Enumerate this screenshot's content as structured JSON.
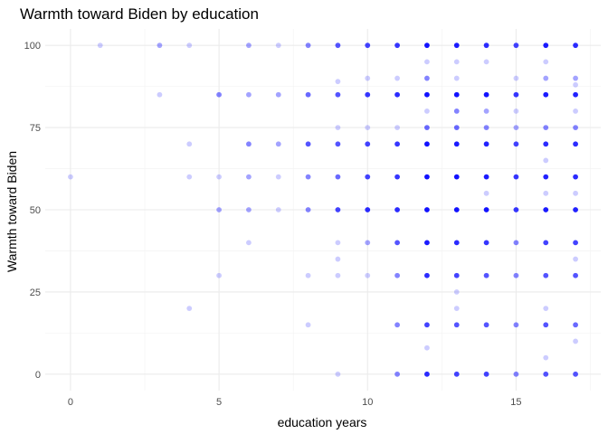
{
  "chart_data": {
    "type": "scatter",
    "title": "Warmth toward Biden by education",
    "xlabel": "education years",
    "ylabel": "Warmth toward Biden",
    "xlim": [
      -0.85,
      17.85
    ],
    "ylim": [
      -5,
      105
    ],
    "x_ticks": [
      0,
      5,
      10,
      15
    ],
    "y_ticks": [
      0,
      25,
      50,
      75,
      100
    ],
    "grid": true,
    "point_color": "#0000ff",
    "point_alpha": 0.2,
    "points": [
      {
        "x": 0,
        "y": 60,
        "n": 1
      },
      {
        "x": 1,
        "y": 100,
        "n": 1
      },
      {
        "x": 3,
        "y": 100,
        "n": 2
      },
      {
        "x": 3,
        "y": 85,
        "n": 1
      },
      {
        "x": 4,
        "y": 100,
        "n": 1
      },
      {
        "x": 4,
        "y": 70,
        "n": 1
      },
      {
        "x": 4,
        "y": 60,
        "n": 1
      },
      {
        "x": 4,
        "y": 20,
        "n": 1
      },
      {
        "x": 5,
        "y": 85,
        "n": 3
      },
      {
        "x": 5,
        "y": 60,
        "n": 1
      },
      {
        "x": 5,
        "y": 50,
        "n": 2
      },
      {
        "x": 5,
        "y": 30,
        "n": 1
      },
      {
        "x": 6,
        "y": 100,
        "n": 2
      },
      {
        "x": 6,
        "y": 85,
        "n": 2
      },
      {
        "x": 6,
        "y": 70,
        "n": 3
      },
      {
        "x": 6,
        "y": 60,
        "n": 2
      },
      {
        "x": 6,
        "y": 50,
        "n": 2
      },
      {
        "x": 6,
        "y": 40,
        "n": 1
      },
      {
        "x": 7,
        "y": 100,
        "n": 1
      },
      {
        "x": 7,
        "y": 85,
        "n": 2
      },
      {
        "x": 7,
        "y": 70,
        "n": 2
      },
      {
        "x": 7,
        "y": 60,
        "n": 1
      },
      {
        "x": 7,
        "y": 50,
        "n": 1
      },
      {
        "x": 8,
        "y": 100,
        "n": 3
      },
      {
        "x": 8,
        "y": 85,
        "n": 4
      },
      {
        "x": 8,
        "y": 70,
        "n": 5
      },
      {
        "x": 8,
        "y": 60,
        "n": 3
      },
      {
        "x": 8,
        "y": 50,
        "n": 3
      },
      {
        "x": 8,
        "y": 30,
        "n": 1
      },
      {
        "x": 8,
        "y": 15,
        "n": 1
      },
      {
        "x": 9,
        "y": 100,
        "n": 5
      },
      {
        "x": 9,
        "y": 89,
        "n": 1
      },
      {
        "x": 9,
        "y": 85,
        "n": 5
      },
      {
        "x": 9,
        "y": 75,
        "n": 1
      },
      {
        "x": 9,
        "y": 70,
        "n": 5
      },
      {
        "x": 9,
        "y": 60,
        "n": 4
      },
      {
        "x": 9,
        "y": 50,
        "n": 6
      },
      {
        "x": 9,
        "y": 40,
        "n": 1
      },
      {
        "x": 9,
        "y": 35,
        "n": 1
      },
      {
        "x": 9,
        "y": 30,
        "n": 1
      },
      {
        "x": 9,
        "y": 0,
        "n": 1
      },
      {
        "x": 10,
        "y": 100,
        "n": 6
      },
      {
        "x": 10,
        "y": 90,
        "n": 1
      },
      {
        "x": 10,
        "y": 85,
        "n": 7
      },
      {
        "x": 10,
        "y": 75,
        "n": 1
      },
      {
        "x": 10,
        "y": 70,
        "n": 6
      },
      {
        "x": 10,
        "y": 60,
        "n": 6
      },
      {
        "x": 10,
        "y": 50,
        "n": 8
      },
      {
        "x": 10,
        "y": 40,
        "n": 2
      },
      {
        "x": 10,
        "y": 30,
        "n": 1
      },
      {
        "x": 11,
        "y": 100,
        "n": 7
      },
      {
        "x": 11,
        "y": 90,
        "n": 1
      },
      {
        "x": 11,
        "y": 85,
        "n": 8
      },
      {
        "x": 11,
        "y": 75,
        "n": 1
      },
      {
        "x": 11,
        "y": 70,
        "n": 7
      },
      {
        "x": 11,
        "y": 60,
        "n": 7
      },
      {
        "x": 11,
        "y": 50,
        "n": 8
      },
      {
        "x": 11,
        "y": 40,
        "n": 5
      },
      {
        "x": 11,
        "y": 30,
        "n": 3
      },
      {
        "x": 11,
        "y": 15,
        "n": 3
      },
      {
        "x": 11,
        "y": 0,
        "n": 3
      },
      {
        "x": 12,
        "y": 100,
        "n": 12
      },
      {
        "x": 12,
        "y": 95,
        "n": 1
      },
      {
        "x": 12,
        "y": 90,
        "n": 3
      },
      {
        "x": 12,
        "y": 85,
        "n": 12
      },
      {
        "x": 12,
        "y": 80,
        "n": 1
      },
      {
        "x": 12,
        "y": 75,
        "n": 4
      },
      {
        "x": 12,
        "y": 70,
        "n": 12
      },
      {
        "x": 12,
        "y": 60,
        "n": 12
      },
      {
        "x": 12,
        "y": 50,
        "n": 12
      },
      {
        "x": 12,
        "y": 40,
        "n": 10
      },
      {
        "x": 12,
        "y": 30,
        "n": 8
      },
      {
        "x": 12,
        "y": 15,
        "n": 6
      },
      {
        "x": 12,
        "y": 8,
        "n": 1
      },
      {
        "x": 12,
        "y": 0,
        "n": 8
      },
      {
        "x": 13,
        "y": 100,
        "n": 10
      },
      {
        "x": 13,
        "y": 95,
        "n": 1
      },
      {
        "x": 13,
        "y": 90,
        "n": 1
      },
      {
        "x": 13,
        "y": 85,
        "n": 12
      },
      {
        "x": 13,
        "y": 80,
        "n": 3
      },
      {
        "x": 13,
        "y": 75,
        "n": 4
      },
      {
        "x": 13,
        "y": 70,
        "n": 10
      },
      {
        "x": 13,
        "y": 60,
        "n": 12
      },
      {
        "x": 13,
        "y": 50,
        "n": 12
      },
      {
        "x": 13,
        "y": 40,
        "n": 8
      },
      {
        "x": 13,
        "y": 30,
        "n": 6
      },
      {
        "x": 13,
        "y": 25,
        "n": 1
      },
      {
        "x": 13,
        "y": 20,
        "n": 1
      },
      {
        "x": 13,
        "y": 15,
        "n": 5
      },
      {
        "x": 13,
        "y": 0,
        "n": 6
      },
      {
        "x": 14,
        "y": 100,
        "n": 8
      },
      {
        "x": 14,
        "y": 95,
        "n": 1
      },
      {
        "x": 14,
        "y": 85,
        "n": 12
      },
      {
        "x": 14,
        "y": 80,
        "n": 2
      },
      {
        "x": 14,
        "y": 75,
        "n": 3
      },
      {
        "x": 14,
        "y": 70,
        "n": 9
      },
      {
        "x": 14,
        "y": 60,
        "n": 10
      },
      {
        "x": 14,
        "y": 55,
        "n": 1
      },
      {
        "x": 14,
        "y": 50,
        "n": 12
      },
      {
        "x": 14,
        "y": 40,
        "n": 7
      },
      {
        "x": 14,
        "y": 30,
        "n": 5
      },
      {
        "x": 14,
        "y": 15,
        "n": 5
      },
      {
        "x": 14,
        "y": 0,
        "n": 6
      },
      {
        "x": 15,
        "y": 100,
        "n": 6
      },
      {
        "x": 15,
        "y": 90,
        "n": 1
      },
      {
        "x": 15,
        "y": 85,
        "n": 7
      },
      {
        "x": 15,
        "y": 80,
        "n": 1
      },
      {
        "x": 15,
        "y": 75,
        "n": 2
      },
      {
        "x": 15,
        "y": 70,
        "n": 6
      },
      {
        "x": 15,
        "y": 60,
        "n": 7
      },
      {
        "x": 15,
        "y": 50,
        "n": 7
      },
      {
        "x": 15,
        "y": 40,
        "n": 3
      },
      {
        "x": 15,
        "y": 30,
        "n": 3
      },
      {
        "x": 15,
        "y": 15,
        "n": 3
      },
      {
        "x": 15,
        "y": 0,
        "n": 3
      },
      {
        "x": 16,
        "y": 100,
        "n": 10
      },
      {
        "x": 16,
        "y": 95,
        "n": 1
      },
      {
        "x": 16,
        "y": 90,
        "n": 2
      },
      {
        "x": 16,
        "y": 85,
        "n": 10
      },
      {
        "x": 16,
        "y": 75,
        "n": 3
      },
      {
        "x": 16,
        "y": 70,
        "n": 8
      },
      {
        "x": 16,
        "y": 65,
        "n": 1
      },
      {
        "x": 16,
        "y": 60,
        "n": 9
      },
      {
        "x": 16,
        "y": 55,
        "n": 1
      },
      {
        "x": 16,
        "y": 50,
        "n": 10
      },
      {
        "x": 16,
        "y": 40,
        "n": 6
      },
      {
        "x": 16,
        "y": 30,
        "n": 5
      },
      {
        "x": 16,
        "y": 20,
        "n": 1
      },
      {
        "x": 16,
        "y": 15,
        "n": 5
      },
      {
        "x": 16,
        "y": 5,
        "n": 1
      },
      {
        "x": 16,
        "y": 0,
        "n": 5
      },
      {
        "x": 17,
        "y": 100,
        "n": 8
      },
      {
        "x": 17,
        "y": 90,
        "n": 2
      },
      {
        "x": 17,
        "y": 88,
        "n": 1
      },
      {
        "x": 17,
        "y": 85,
        "n": 9
      },
      {
        "x": 17,
        "y": 80,
        "n": 1
      },
      {
        "x": 17,
        "y": 75,
        "n": 3
      },
      {
        "x": 17,
        "y": 70,
        "n": 8
      },
      {
        "x": 17,
        "y": 60,
        "n": 8
      },
      {
        "x": 17,
        "y": 55,
        "n": 1
      },
      {
        "x": 17,
        "y": 50,
        "n": 9
      },
      {
        "x": 17,
        "y": 40,
        "n": 6
      },
      {
        "x": 17,
        "y": 35,
        "n": 1
      },
      {
        "x": 17,
        "y": 30,
        "n": 5
      },
      {
        "x": 17,
        "y": 15,
        "n": 4
      },
      {
        "x": 17,
        "y": 10,
        "n": 1
      },
      {
        "x": 17,
        "y": 0,
        "n": 5
      }
    ]
  }
}
